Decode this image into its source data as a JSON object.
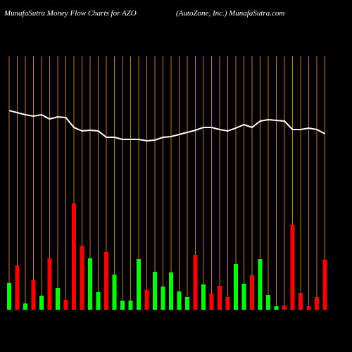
{
  "chart_data": {
    "type": "money-flow",
    "title": "MunafaSutra  Money Flow  Charts for AZO",
    "subtitle": "(AutoZone, Inc.) MunafaSutra.com",
    "categories": [
      null,
      null,
      null,
      null,
      null,
      null,
      null,
      null,
      null,
      null,
      null,
      null,
      null,
      null,
      null,
      null,
      null,
      null,
      null,
      null,
      null,
      null,
      null,
      null,
      null,
      null,
      null,
      null,
      null,
      null,
      null,
      null,
      null,
      null,
      null,
      null,
      null,
      null,
      null,
      null
    ],
    "values": [
      38,
      63,
      9,
      42,
      20,
      73,
      31,
      14,
      151,
      91,
      73,
      25,
      82,
      50,
      13,
      13,
      72,
      28,
      54,
      33,
      53,
      26,
      18,
      78,
      36,
      23,
      34,
      18,
      65,
      37,
      49,
      72,
      21,
      5,
      6,
      121,
      24,
      5,
      18,
      71
    ],
    "colors": [
      "#00ff00",
      "#ff0000",
      "#00ff00",
      "#ff0000",
      "#00ff00",
      "#ff0000",
      "#00ff00",
      "#ff0000",
      "#ff0000",
      "#ff0000",
      "#00ff00",
      "#00ff00",
      "#ff0000",
      "#00ff00",
      "#00ff00",
      "#00ff00",
      "#00ff00",
      "#ff0000",
      "#00ff00",
      "#00ff00",
      "#00ff00",
      "#00ff00",
      "#00ff00",
      "#ff0000",
      "#00ff00",
      "#ff0000",
      "#ff0000",
      "#ff0000",
      "#00ff00",
      "#00ff00",
      "#ff0000",
      "#00ff00",
      "#00ff00",
      "#00ff00",
      "#ff0000",
      "#ff0000",
      "#ff0000",
      "#ff0000",
      "#ff0000",
      "#ff0000"
    ],
    "line_values": [
      283,
      280,
      277,
      275,
      277,
      271,
      274,
      273,
      259,
      254,
      255,
      254,
      245,
      245,
      242,
      242,
      242,
      240,
      241,
      245,
      246,
      249,
      252,
      255,
      259,
      259,
      256,
      254,
      258,
      263,
      259,
      268,
      270,
      269,
      268,
      256,
      256,
      258,
      256,
      250
    ],
    "line_color": "#ffffff",
    "grid_color": "#cc7a00",
    "ylim": [
      0,
      400
    ]
  }
}
